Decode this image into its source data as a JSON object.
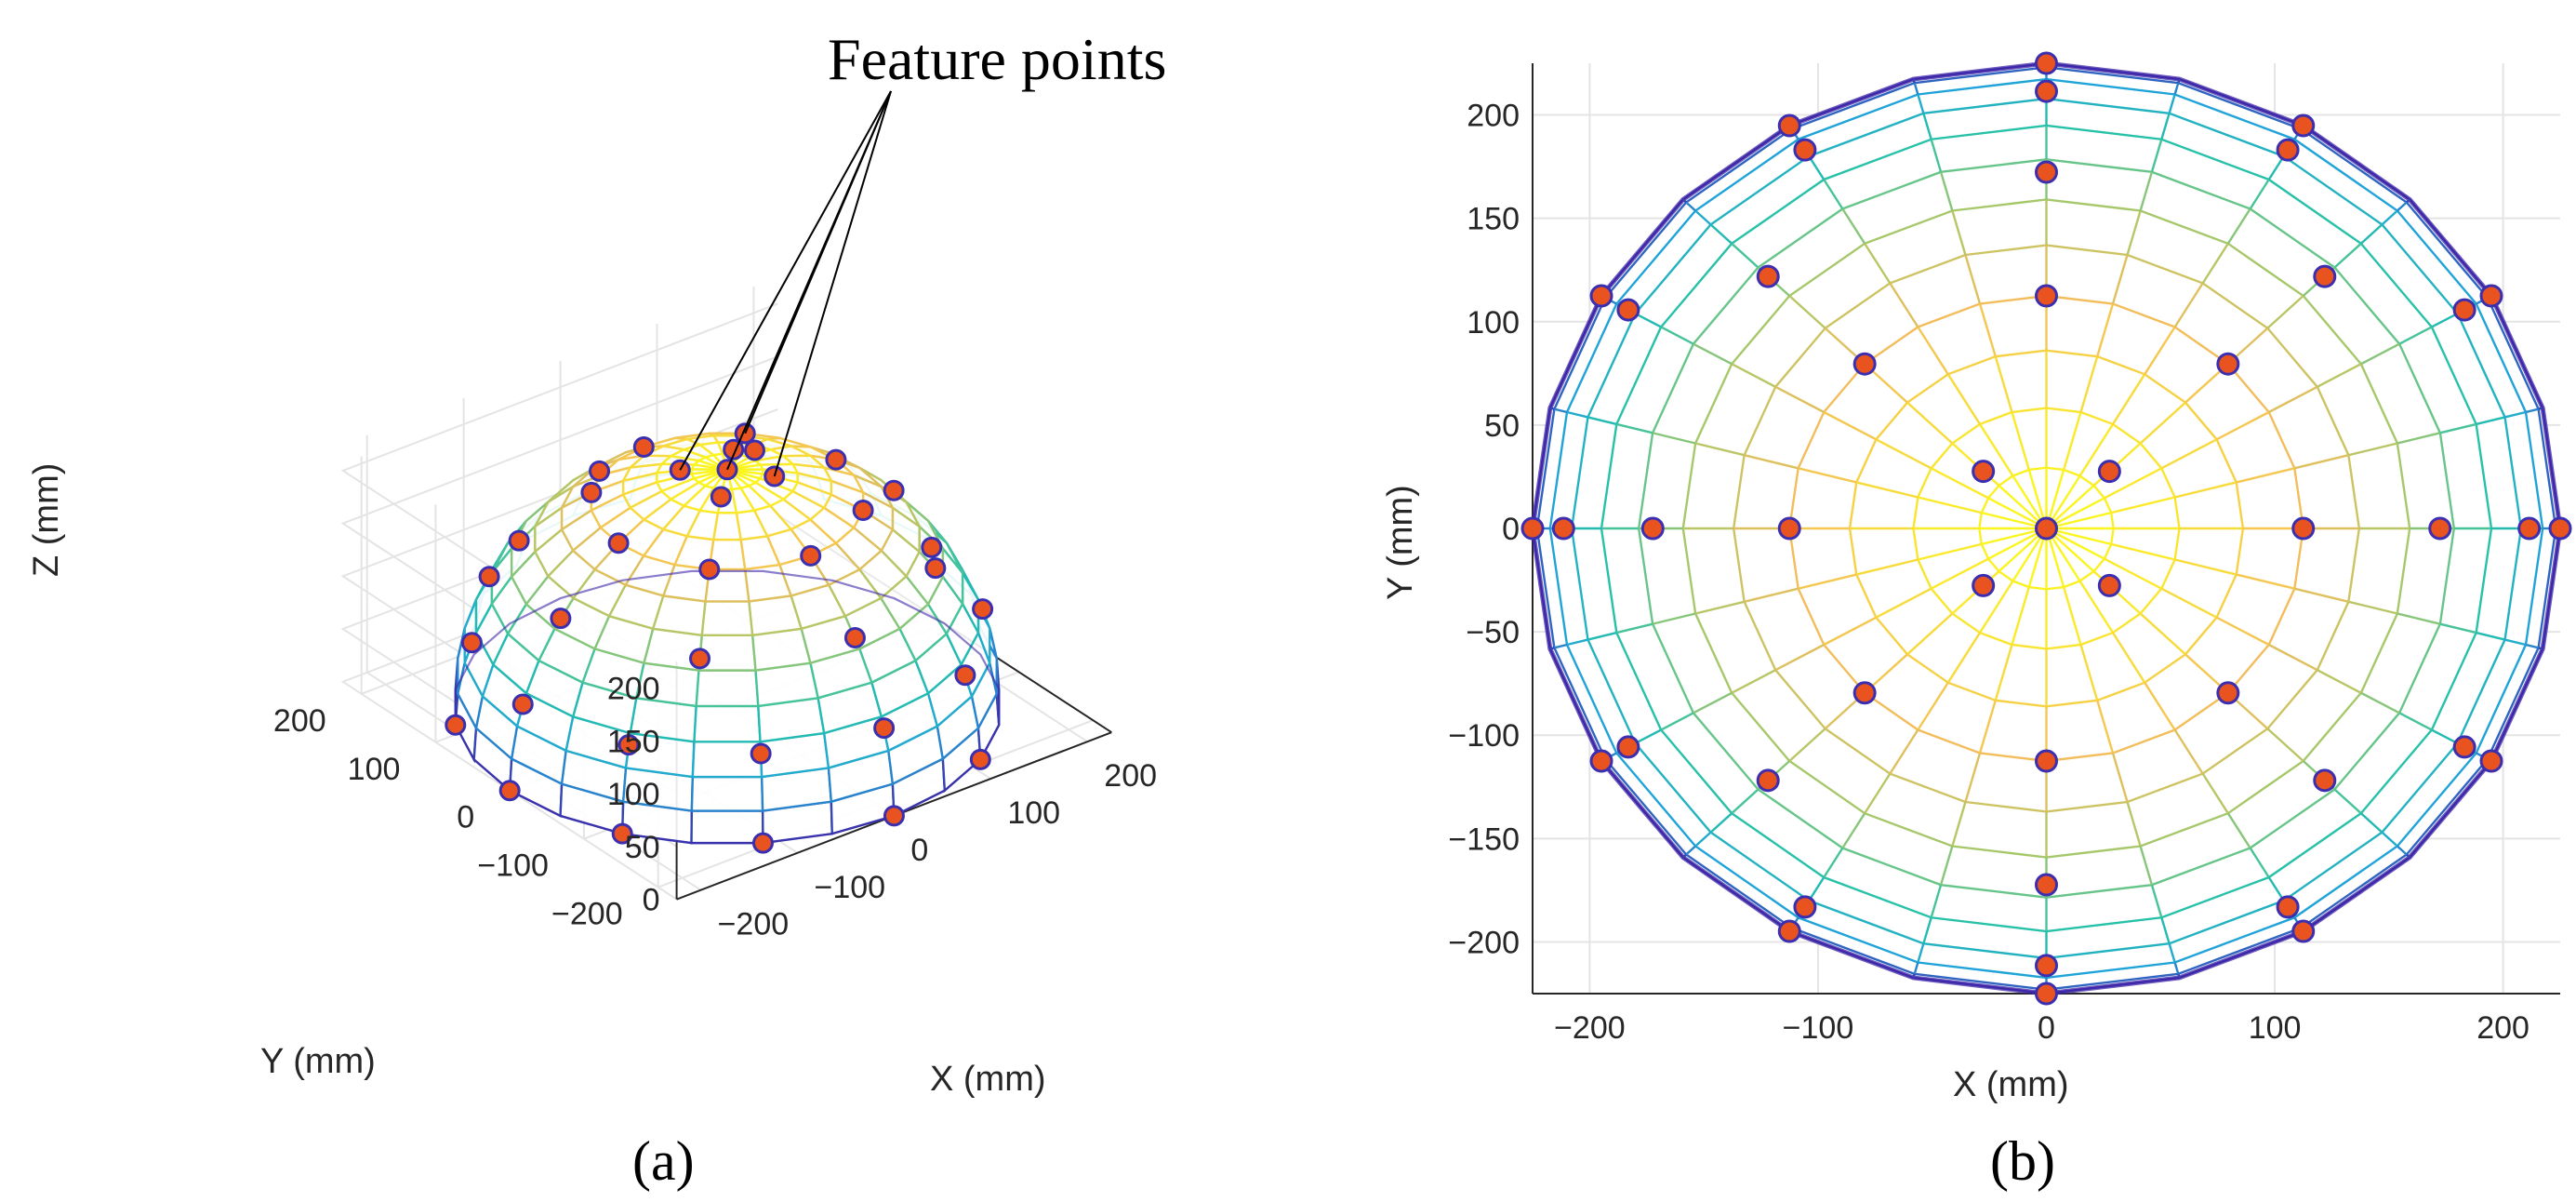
{
  "colors": {
    "marker_fill": "#e8531f",
    "marker_edge": "#3b2fb0",
    "grid": "#e4e4e4",
    "axis": "#262626",
    "colormap": [
      "#3e26a8",
      "#1fa3d9",
      "#26c1a8",
      "#a7c86a",
      "#f2bd5a",
      "#f9e530",
      "#fbfa17"
    ]
  },
  "annotation": {
    "label": "Feature points"
  },
  "panel_labels": {
    "a": "(a)",
    "b": "(b)"
  },
  "chart_data": [
    {
      "type": "surface3d",
      "panel": "(a)",
      "surface": "hemisphere",
      "radius_mm": 225,
      "xlabel": "X  (mm)",
      "ylabel": "Y  (mm)",
      "zlabel": "Z  (mm)",
      "xticks": [
        "−200",
        "−100",
        "0",
        "100",
        "200"
      ],
      "yticks": [
        "−200",
        "−100",
        "0",
        "100",
        "200"
      ],
      "zticks": [
        "0",
        "50",
        "100",
        "150",
        "200"
      ],
      "xlim": [
        -225,
        225
      ],
      "ylim": [
        -225,
        225
      ],
      "zlim": [
        0,
        225
      ],
      "grid": true,
      "view": {
        "azimuth": -37.5,
        "elevation": 30
      },
      "mesh": {
        "latitude_divisions": 12,
        "longitude_divisions": 24
      },
      "feature_points": {
        "elevation_deg": [
          0,
          20,
          40,
          60,
          80,
          90
        ],
        "points_per_ring": [
          12,
          12,
          8,
          8,
          4,
          1
        ]
      }
    },
    {
      "type": "surface_topview",
      "panel": "(b)",
      "surface": "hemisphere",
      "radius_mm": 225,
      "xlabel": "X  (mm)",
      "ylabel": "Y  (mm)",
      "xticks": [
        "−200",
        "−100",
        "0",
        "100",
        "200"
      ],
      "yticks": [
        "−200",
        "−150",
        "−100",
        "−50",
        "0",
        "50",
        "100",
        "150",
        "200"
      ],
      "xlim": [
        -225,
        225
      ],
      "ylim": [
        -225,
        225
      ],
      "grid": true,
      "feature_points": {
        "elevation_deg": [
          0,
          20,
          40,
          60,
          80,
          90
        ],
        "points_per_ring": [
          12,
          12,
          8,
          8,
          4,
          1
        ]
      }
    }
  ]
}
